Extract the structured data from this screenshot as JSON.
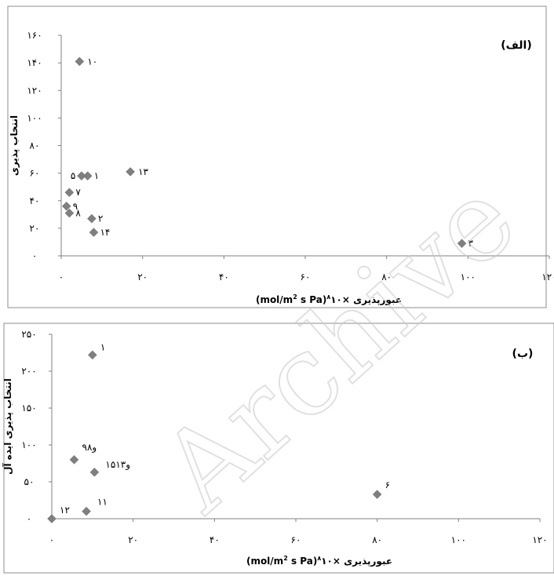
{
  "watermark": "Archive",
  "chart_data": [
    {
      "type": "scatter",
      "panel_label": "(الف)",
      "xlabel": "عبورپذیری ×۱۰^۸(mol/m² s Pa)",
      "xlabel_parts": {
        "text": "عبورپذیری ×۱۰",
        "sup8": "۸",
        "units": "(mol/m",
        "sup2": "2",
        "units_tail": " s Pa)"
      },
      "ylabel": "انتخاب پذیری",
      "xlim": [
        0,
        120
      ],
      "ylim": [
        0,
        160
      ],
      "xticks": [
        0,
        20,
        40,
        60,
        80,
        100,
        120
      ],
      "yticks": [
        0,
        20,
        40,
        60,
        80,
        100,
        120,
        140,
        160
      ],
      "xtick_labels": [
        "۰",
        "۲۰",
        "۴۰",
        "۶۰",
        "۸۰",
        "۱۰۰",
        "۱۲۰"
      ],
      "ytick_labels": [
        "۰",
        "۲۰",
        "۴۰",
        "۶۰",
        "۸۰",
        "۱۰۰",
        "۱۲۰",
        "۱۴۰",
        "۱۶۰"
      ],
      "points": [
        {
          "label": "۱۰",
          "x": 4.5,
          "y": 141
        },
        {
          "label": "۱۳",
          "x": 17,
          "y": 61
        },
        {
          "label": "۱",
          "x": 6.5,
          "y": 58
        },
        {
          "label": "۵",
          "x": 5,
          "y": 58
        },
        {
          "label": "۷",
          "x": 2,
          "y": 46
        },
        {
          "label": "۹",
          "x": 1.3,
          "y": 36
        },
        {
          "label": "۸",
          "x": 2,
          "y": 31
        },
        {
          "label": "۲",
          "x": 7.5,
          "y": 27
        },
        {
          "label": "۱۴",
          "x": 8,
          "y": 17
        },
        {
          "label": "۳",
          "x": 98.5,
          "y": 9
        }
      ]
    },
    {
      "type": "scatter",
      "panel_label": "(ب)",
      "xlabel": "عبورپذیری ×۱۰^۸(mol/m² s Pa)",
      "xlabel_parts": {
        "text": "عبورپذیری ×۱۰",
        "sup8": "۸",
        "units": "(mol/m",
        "sup2": "2",
        "units_tail": " s Pa)"
      },
      "ylabel": "انتخاب پذیری ایده آل",
      "xlim": [
        0,
        120
      ],
      "ylim": [
        0,
        250
      ],
      "xticks": [
        0,
        20,
        40,
        60,
        80,
        100,
        120
      ],
      "yticks": [
        0,
        50,
        100,
        150,
        200,
        250
      ],
      "xtick_labels": [
        "۰",
        "۲۰",
        "۴۰",
        "۶۰",
        "۸۰",
        "۱۰۰",
        "۱۲۰"
      ],
      "ytick_labels": [
        "۰",
        "۵۰",
        "۱۰۰",
        "۱۵۰",
        "۲۰۰",
        "۲۵۰"
      ],
      "points": [
        {
          "label": "۱",
          "x": 10,
          "y": 222
        },
        {
          "label": "۹و۸",
          "x": 5.5,
          "y": 80
        },
        {
          "label": "۱۵و۱۳",
          "x": 10.5,
          "y": 63
        },
        {
          "label": "۶",
          "x": 80,
          "y": 33
        },
        {
          "label": "۱۱",
          "x": 8.5,
          "y": 10
        },
        {
          "label": "۱۲",
          "x": 0,
          "y": 0
        }
      ]
    }
  ]
}
